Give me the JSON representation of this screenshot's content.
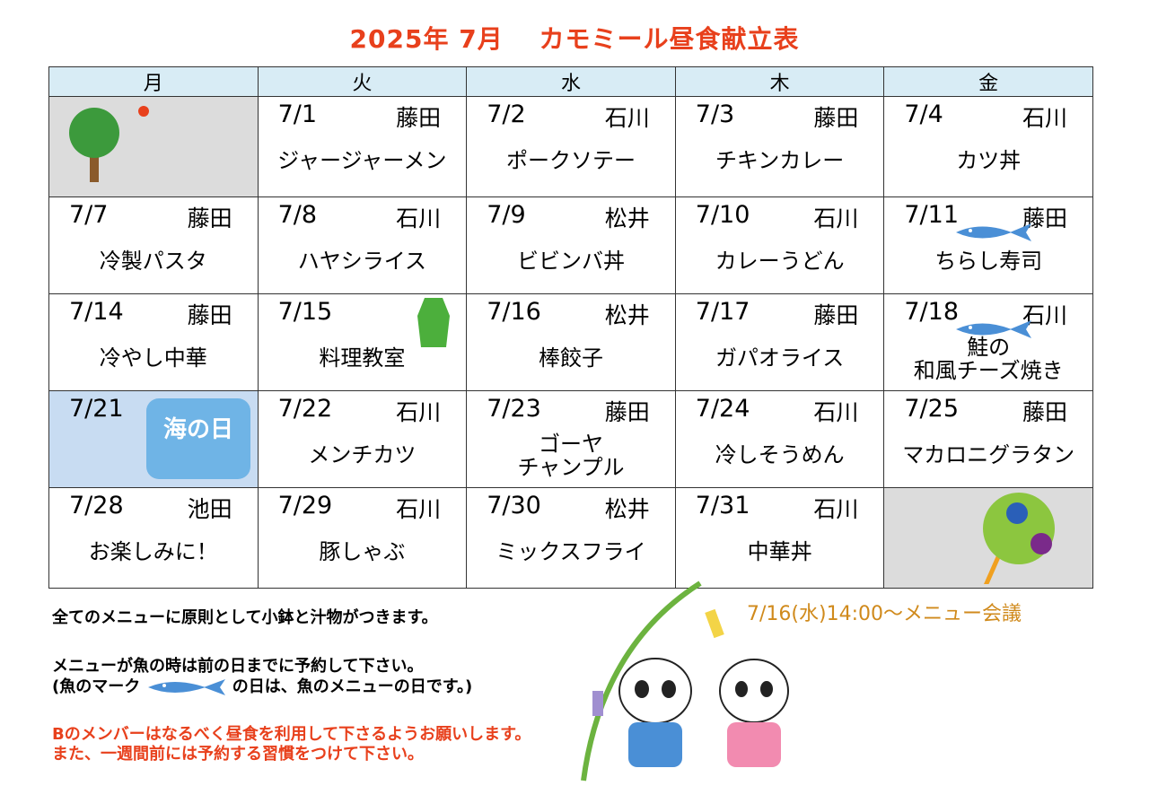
{
  "title": "2025年 7月　 カモミール昼食献立表",
  "weekdays": [
    "月",
    "火",
    "水",
    "木",
    "金"
  ],
  "weeks": [
    [
      {
        "empty": true
      },
      {
        "date": "7/1",
        "staff": "藤田",
        "menu": "ジャージャーメン"
      },
      {
        "date": "7/2",
        "staff": "石川",
        "menu": "ポークソテー"
      },
      {
        "date": "7/3",
        "staff": "藤田",
        "menu": "チキンカレー"
      },
      {
        "date": "7/4",
        "staff": "石川",
        "menu": "カツ丼"
      }
    ],
    [
      {
        "date": "7/7",
        "staff": "藤田",
        "menu": "冷製パスタ"
      },
      {
        "date": "7/8",
        "staff": "石川",
        "menu": "ハヤシライス"
      },
      {
        "date": "7/9",
        "staff": "松井",
        "menu": "ビビンバ丼"
      },
      {
        "date": "7/10",
        "staff": "石川",
        "menu": "カレーうどん"
      },
      {
        "date": "7/11",
        "staff": "藤田",
        "menu": "ちらし寿司",
        "fish": true
      }
    ],
    [
      {
        "date": "7/14",
        "staff": "藤田",
        "menu": "冷やし中華"
      },
      {
        "date": "7/15",
        "staff": "",
        "menu": "料理教室"
      },
      {
        "date": "7/16",
        "staff": "松井",
        "menu": "棒餃子"
      },
      {
        "date": "7/17",
        "staff": "藤田",
        "menu": "ガパオライス"
      },
      {
        "date": "7/18",
        "staff": "石川",
        "menu": "鮭の\n和風チーズ焼き",
        "fish": true
      }
    ],
    [
      {
        "date": "7/21",
        "staff": "",
        "menu": "",
        "holiday": "海の日"
      },
      {
        "date": "7/22",
        "staff": "石川",
        "menu": "メンチカツ"
      },
      {
        "date": "7/23",
        "staff": "藤田",
        "menu": "ゴーヤ\nチャンプル"
      },
      {
        "date": "7/24",
        "staff": "石川",
        "menu": "冷しそうめん"
      },
      {
        "date": "7/25",
        "staff": "藤田",
        "menu": "マカロニグラタン"
      }
    ],
    [
      {
        "date": "7/28",
        "staff": "池田",
        "menu": "お楽しみに！"
      },
      {
        "date": "7/29",
        "staff": "石川",
        "menu": "豚しゃぶ"
      },
      {
        "date": "7/30",
        "staff": "松井",
        "menu": "ミックスフライ"
      },
      {
        "date": "7/31",
        "staff": "石川",
        "menu": "中華丼"
      },
      {
        "empty": true
      }
    ]
  ],
  "notes": {
    "line1": "全てのメニューに原則として小鉢と汁物がつきます。",
    "line2": "メニューが魚の時は前の日までに予約して下さい。",
    "line3a": "(魚のマーク",
    "line3b": "の日は、魚のメニューの日です。)",
    "line4": "Bのメンバーはなるべく昼食を利用して下さるようお願いします。",
    "line5": "また、一週間前には予約する習慣をつけて下さい。"
  },
  "meeting": "7/16(水)14:00～メニュー会議",
  "colors": {
    "title": "#e8401c",
    "header_bg": "#d8ecf5",
    "fish": "#4a8fd6",
    "meeting": "#d08a1c"
  }
}
